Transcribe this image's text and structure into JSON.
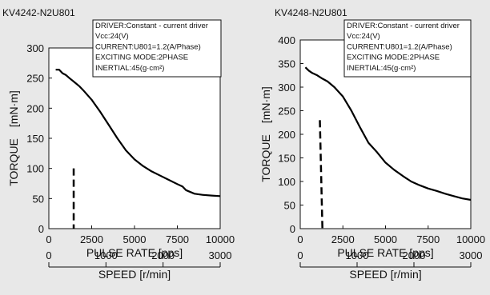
{
  "chart_data": [
    {
      "type": "line",
      "title": "KV4242-N2U801",
      "xlabel": "PULSE RATE [pps]",
      "ylabel": "TORQUE　[mN·m]",
      "speed_label": "SPEED [r/min]",
      "xlim": [
        0,
        10000
      ],
      "ylim": [
        0,
        300
      ],
      "x_ticks": [
        0,
        2500,
        5000,
        7500,
        10000
      ],
      "y_ticks": [
        0,
        50,
        100,
        150,
        200,
        250,
        300
      ],
      "speed_ticks": [
        0,
        1000,
        2000,
        3000
      ],
      "speed_max": 3000,
      "grid": false,
      "conditions": [
        "DRIVER:Constant - current driver",
        "Vcc:24(V)",
        "CURRENT:U801=1.2(A/Phase)",
        "EXCITING MODE:2PHASE",
        "INERTIAL:45(g·cm²)"
      ],
      "pullout_torque": {
        "x": [
          400,
          600,
          800,
          1000,
          1200,
          1500,
          1800,
          2000,
          2500,
          3000,
          3500,
          4000,
          4500,
          5000,
          5500,
          6000,
          6500,
          7000,
          7500,
          7800,
          8000,
          8500,
          9000,
          9500,
          10000
        ],
        "y": [
          264,
          264,
          258,
          255,
          250,
          243,
          236,
          230,
          214,
          194,
          172,
          150,
          130,
          115,
          104,
          95,
          88,
          81,
          74,
          70,
          64,
          58,
          56,
          55,
          54
        ]
      },
      "starting_frequency": {
        "x": 1450,
        "y": 100
      }
    },
    {
      "type": "line",
      "title": "KV4248-N2U801",
      "xlabel": "PULSE RATE [pps]",
      "ylabel": "TORQUE　[mN·m]",
      "speed_label": "SPEED [r/min]",
      "xlim": [
        0,
        10000
      ],
      "ylim": [
        0,
        400
      ],
      "x_ticks": [
        0,
        2500,
        5000,
        7500,
        10000
      ],
      "y_ticks": [
        0,
        50,
        100,
        150,
        200,
        250,
        300,
        350,
        400
      ],
      "speed_ticks": [
        0,
        1000,
        2000,
        3000
      ],
      "speed_max": 3000,
      "grid": false,
      "conditions": [
        "DRIVER:Constant - current driver",
        "Vcc:24(V)",
        "CURRENT:U801=1.2(A/Phase)",
        "EXCITING MODE:2PHASE",
        "INERTIAL:45(g·cm²)"
      ],
      "pullout_torque": {
        "x": [
          300,
          500,
          700,
          1000,
          1300,
          1600,
          2000,
          2500,
          3000,
          3500,
          4000,
          4500,
          5000,
          5500,
          6000,
          6500,
          7000,
          7500,
          8000,
          8500,
          9000,
          9500,
          10000
        ],
        "y": [
          342,
          335,
          330,
          325,
          318,
          312,
          300,
          280,
          250,
          215,
          182,
          162,
          140,
          125,
          112,
          100,
          92,
          85,
          80,
          74,
          69,
          64,
          61
        ]
      },
      "starting_frequency": {
        "x": 1150,
        "x_end": 1300,
        "y": 230
      }
    }
  ]
}
